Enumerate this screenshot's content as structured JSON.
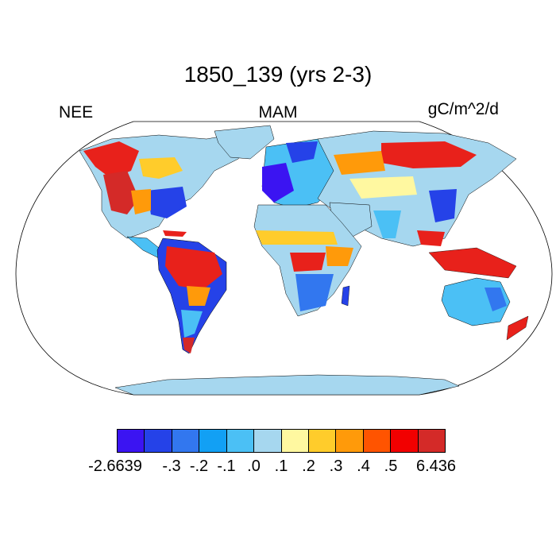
{
  "title": "1850_139 (yrs 2-3)",
  "left_label": "NEE",
  "center_label": "MAM",
  "right_label": "gC/m^2/d",
  "colorbar": {
    "colors": [
      "#3b14f2",
      "#2542e8",
      "#3277ef",
      "#12a0f4",
      "#4bc0f5",
      "#a6d7ef",
      "#fff8a0",
      "#ffcc2b",
      "#ff9a0a",
      "#ff5400",
      "#f20000",
      "#d42a28"
    ],
    "tick_labels": [
      "-2.6639",
      "-.3",
      "-.2",
      "-.1",
      ".0",
      ".1",
      ".2",
      ".3",
      ".4",
      ".5",
      "6.436"
    ]
  },
  "map": {
    "projection": "Robinson",
    "ocean_color": "#ffffff",
    "land_base_color": "#a6d7ef"
  }
}
